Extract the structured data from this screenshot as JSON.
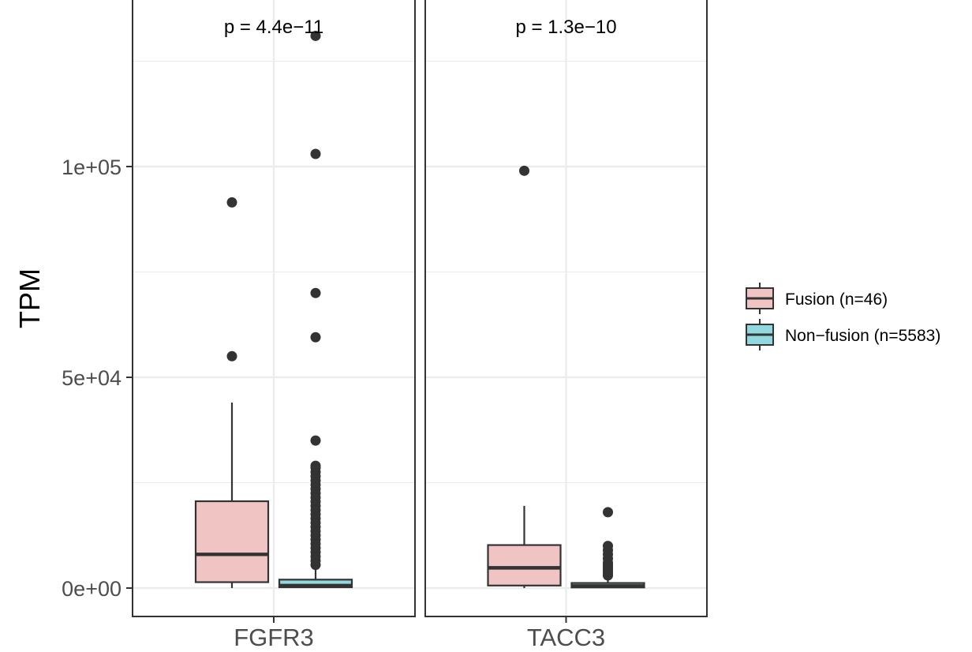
{
  "chart_data": {
    "type": "boxplot",
    "ylabel": "TPM",
    "ylim": [
      -6000,
      132000
    ],
    "y_ticks": [
      {
        "value": 0,
        "label": "0e+00"
      },
      {
        "value": 50000,
        "label": "5e+04"
      },
      {
        "value": 100000,
        "label": "1e+05"
      }
    ],
    "y_minor": [
      25000,
      75000,
      125000
    ],
    "grid": true,
    "legend_position": "right",
    "series": [
      {
        "name": "Fusion (n=46)",
        "color": "#f0c4c2"
      },
      {
        "name": "Non−fusion (n=5583)",
        "color": "#92d8df"
      }
    ],
    "panels": [
      {
        "category": "FGFR3",
        "pvalue_label": "p = 4.4e−11",
        "boxes": [
          {
            "series": 0,
            "q1": 1400,
            "median": 8000,
            "q3": 20600,
            "whisker_low": 0,
            "whisker_high": 44000,
            "outliers": [
              55000,
              91500
            ]
          },
          {
            "series": 1,
            "q1": 200,
            "median": 600,
            "q3": 2000,
            "whisker_low": 0,
            "whisker_high": 5000,
            "outliers": [
              5500,
              6500,
              7500,
              8500,
              9500,
              10500,
              11500,
              12500,
              13500,
              14500,
              15500,
              16500,
              17500,
              18500,
              19500,
              20500,
              21500,
              22500,
              23500,
              24500,
              25500,
              26500,
              27500,
              28500,
              29000,
              35000,
              59500,
              70000,
              103000,
              131000
            ]
          }
        ]
      },
      {
        "category": "TACC3",
        "pvalue_label": "p = 1.3e−10",
        "boxes": [
          {
            "series": 0,
            "q1": 600,
            "median": 4800,
            "q3": 10200,
            "whisker_low": 0,
            "whisker_high": 19500,
            "outliers": [
              99000
            ]
          },
          {
            "series": 1,
            "q1": 150,
            "median": 500,
            "q3": 1200,
            "whisker_low": 0,
            "whisker_high": 2500,
            "outliers": [
              3000,
              3500,
              4000,
              4500,
              5000,
              5500,
              6000,
              7000,
              8000,
              9000,
              10000,
              18000
            ]
          }
        ]
      }
    ]
  }
}
